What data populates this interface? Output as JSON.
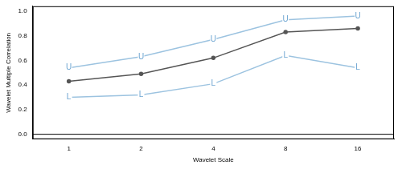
{
  "chart_data": {
    "type": "line",
    "x_label": "Wavelet Scale",
    "y_label": "Wavelet Multiple Correlation",
    "categories": [
      "1",
      "2",
      "4",
      "8",
      "16"
    ],
    "series": [
      {
        "color": "#9cc3e0",
        "values": [
          0.54,
          0.63,
          0.77,
          0.93,
          0.96
        ],
        "marker": "U",
        "marker_color": "#6fa6d2"
      },
      {
        "color": "#555555",
        "values": [
          0.43,
          0.49,
          0.62,
          0.83,
          0.86
        ],
        "marker": "circle"
      },
      {
        "color": "#9cc3e0",
        "values": [
          0.3,
          0.32,
          0.41,
          0.64,
          0.54
        ],
        "marker": "L",
        "marker_color": "#6fa6d2"
      }
    ],
    "hline": 0,
    "ylim": [
      -0.04,
      1.04
    ],
    "yticks": [
      {
        "value": 0,
        "label": "0.0"
      },
      {
        "value": 0.2,
        "label": "0.2"
      },
      {
        "value": 0.4,
        "label": "0.4"
      },
      {
        "value": 0.6,
        "label": "0.6"
      },
      {
        "value": 0.8,
        "label": "0.8"
      },
      {
        "value": 1,
        "label": "1.0"
      }
    ],
    "grid": false
  }
}
